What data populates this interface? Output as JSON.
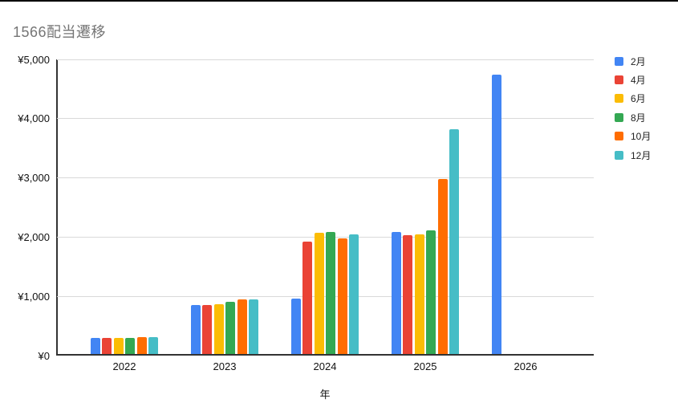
{
  "title": "1566配当遷移",
  "chart_data": {
    "type": "bar",
    "title": "1566配当遷移",
    "xlabel": "年",
    "ylabel": "",
    "categories": [
      "2022",
      "2023",
      "2024",
      "2025",
      "2026"
    ],
    "series": [
      {
        "name": "2月",
        "color": "#4285F4",
        "values": [
          270,
          830,
          940,
          2065,
          4720
        ]
      },
      {
        "name": "4月",
        "color": "#EA4335",
        "values": [
          270,
          820,
          1900,
          2000,
          null
        ]
      },
      {
        "name": "6月",
        "color": "#FBBC04",
        "values": [
          270,
          845,
          2045,
          2025,
          null
        ]
      },
      {
        "name": "8月",
        "color": "#34A853",
        "values": [
          275,
          875,
          2060,
          2090,
          null
        ]
      },
      {
        "name": "10月",
        "color": "#FF6D01",
        "values": [
          285,
          920,
          1950,
          2950,
          null
        ]
      },
      {
        "name": "12月",
        "color": "#46BDC6",
        "values": [
          285,
          915,
          2020,
          3800,
          null
        ]
      }
    ],
    "ylim": [
      0,
      5000
    ],
    "yticks": [
      0,
      1000,
      2000,
      3000,
      4000,
      5000
    ],
    "ytick_labels": [
      "¥0",
      "¥1,000",
      "¥2,000",
      "¥3,000",
      "¥4,000",
      "¥5,000"
    ],
    "grid": true,
    "legend_position": "right",
    "colors": {
      "title_text": "#757575",
      "axis_line": "#333333",
      "gridline": "#d9d9d9",
      "tick_text": "#111111"
    }
  }
}
